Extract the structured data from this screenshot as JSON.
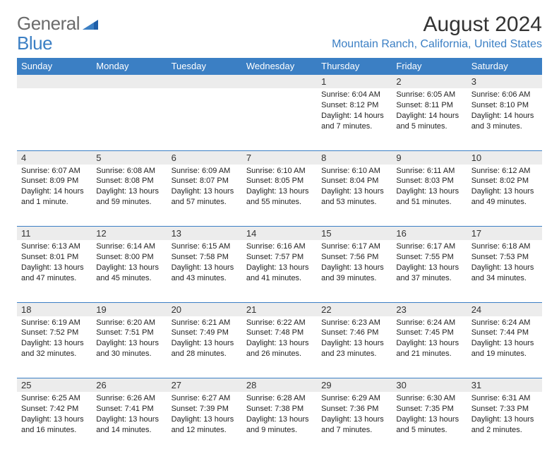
{
  "logo": {
    "word1": "General",
    "word2": "Blue"
  },
  "title": "August 2024",
  "location": "Mountain Ranch, California, United States",
  "colors": {
    "header_bg": "#3b7fc4",
    "header_text": "#ffffff",
    "daynum_bg": "#ececec",
    "border": "#3b7fc4",
    "logo_gray": "#6b6b6b",
    "logo_blue": "#3b7fc4"
  },
  "day_headers": [
    "Sunday",
    "Monday",
    "Tuesday",
    "Wednesday",
    "Thursday",
    "Friday",
    "Saturday"
  ],
  "weeks": [
    [
      null,
      null,
      null,
      null,
      {
        "n": "1",
        "sr": "Sunrise: 6:04 AM",
        "ss": "Sunset: 8:12 PM",
        "d1": "Daylight: 14 hours",
        "d2": "and 7 minutes."
      },
      {
        "n": "2",
        "sr": "Sunrise: 6:05 AM",
        "ss": "Sunset: 8:11 PM",
        "d1": "Daylight: 14 hours",
        "d2": "and 5 minutes."
      },
      {
        "n": "3",
        "sr": "Sunrise: 6:06 AM",
        "ss": "Sunset: 8:10 PM",
        "d1": "Daylight: 14 hours",
        "d2": "and 3 minutes."
      }
    ],
    [
      {
        "n": "4",
        "sr": "Sunrise: 6:07 AM",
        "ss": "Sunset: 8:09 PM",
        "d1": "Daylight: 14 hours",
        "d2": "and 1 minute."
      },
      {
        "n": "5",
        "sr": "Sunrise: 6:08 AM",
        "ss": "Sunset: 8:08 PM",
        "d1": "Daylight: 13 hours",
        "d2": "and 59 minutes."
      },
      {
        "n": "6",
        "sr": "Sunrise: 6:09 AM",
        "ss": "Sunset: 8:07 PM",
        "d1": "Daylight: 13 hours",
        "d2": "and 57 minutes."
      },
      {
        "n": "7",
        "sr": "Sunrise: 6:10 AM",
        "ss": "Sunset: 8:05 PM",
        "d1": "Daylight: 13 hours",
        "d2": "and 55 minutes."
      },
      {
        "n": "8",
        "sr": "Sunrise: 6:10 AM",
        "ss": "Sunset: 8:04 PM",
        "d1": "Daylight: 13 hours",
        "d2": "and 53 minutes."
      },
      {
        "n": "9",
        "sr": "Sunrise: 6:11 AM",
        "ss": "Sunset: 8:03 PM",
        "d1": "Daylight: 13 hours",
        "d2": "and 51 minutes."
      },
      {
        "n": "10",
        "sr": "Sunrise: 6:12 AM",
        "ss": "Sunset: 8:02 PM",
        "d1": "Daylight: 13 hours",
        "d2": "and 49 minutes."
      }
    ],
    [
      {
        "n": "11",
        "sr": "Sunrise: 6:13 AM",
        "ss": "Sunset: 8:01 PM",
        "d1": "Daylight: 13 hours",
        "d2": "and 47 minutes."
      },
      {
        "n": "12",
        "sr": "Sunrise: 6:14 AM",
        "ss": "Sunset: 8:00 PM",
        "d1": "Daylight: 13 hours",
        "d2": "and 45 minutes."
      },
      {
        "n": "13",
        "sr": "Sunrise: 6:15 AM",
        "ss": "Sunset: 7:58 PM",
        "d1": "Daylight: 13 hours",
        "d2": "and 43 minutes."
      },
      {
        "n": "14",
        "sr": "Sunrise: 6:16 AM",
        "ss": "Sunset: 7:57 PM",
        "d1": "Daylight: 13 hours",
        "d2": "and 41 minutes."
      },
      {
        "n": "15",
        "sr": "Sunrise: 6:17 AM",
        "ss": "Sunset: 7:56 PM",
        "d1": "Daylight: 13 hours",
        "d2": "and 39 minutes."
      },
      {
        "n": "16",
        "sr": "Sunrise: 6:17 AM",
        "ss": "Sunset: 7:55 PM",
        "d1": "Daylight: 13 hours",
        "d2": "and 37 minutes."
      },
      {
        "n": "17",
        "sr": "Sunrise: 6:18 AM",
        "ss": "Sunset: 7:53 PM",
        "d1": "Daylight: 13 hours",
        "d2": "and 34 minutes."
      }
    ],
    [
      {
        "n": "18",
        "sr": "Sunrise: 6:19 AM",
        "ss": "Sunset: 7:52 PM",
        "d1": "Daylight: 13 hours",
        "d2": "and 32 minutes."
      },
      {
        "n": "19",
        "sr": "Sunrise: 6:20 AM",
        "ss": "Sunset: 7:51 PM",
        "d1": "Daylight: 13 hours",
        "d2": "and 30 minutes."
      },
      {
        "n": "20",
        "sr": "Sunrise: 6:21 AM",
        "ss": "Sunset: 7:49 PM",
        "d1": "Daylight: 13 hours",
        "d2": "and 28 minutes."
      },
      {
        "n": "21",
        "sr": "Sunrise: 6:22 AM",
        "ss": "Sunset: 7:48 PM",
        "d1": "Daylight: 13 hours",
        "d2": "and 26 minutes."
      },
      {
        "n": "22",
        "sr": "Sunrise: 6:23 AM",
        "ss": "Sunset: 7:46 PM",
        "d1": "Daylight: 13 hours",
        "d2": "and 23 minutes."
      },
      {
        "n": "23",
        "sr": "Sunrise: 6:24 AM",
        "ss": "Sunset: 7:45 PM",
        "d1": "Daylight: 13 hours",
        "d2": "and 21 minutes."
      },
      {
        "n": "24",
        "sr": "Sunrise: 6:24 AM",
        "ss": "Sunset: 7:44 PM",
        "d1": "Daylight: 13 hours",
        "d2": "and 19 minutes."
      }
    ],
    [
      {
        "n": "25",
        "sr": "Sunrise: 6:25 AM",
        "ss": "Sunset: 7:42 PM",
        "d1": "Daylight: 13 hours",
        "d2": "and 16 minutes."
      },
      {
        "n": "26",
        "sr": "Sunrise: 6:26 AM",
        "ss": "Sunset: 7:41 PM",
        "d1": "Daylight: 13 hours",
        "d2": "and 14 minutes."
      },
      {
        "n": "27",
        "sr": "Sunrise: 6:27 AM",
        "ss": "Sunset: 7:39 PM",
        "d1": "Daylight: 13 hours",
        "d2": "and 12 minutes."
      },
      {
        "n": "28",
        "sr": "Sunrise: 6:28 AM",
        "ss": "Sunset: 7:38 PM",
        "d1": "Daylight: 13 hours",
        "d2": "and 9 minutes."
      },
      {
        "n": "29",
        "sr": "Sunrise: 6:29 AM",
        "ss": "Sunset: 7:36 PM",
        "d1": "Daylight: 13 hours",
        "d2": "and 7 minutes."
      },
      {
        "n": "30",
        "sr": "Sunrise: 6:30 AM",
        "ss": "Sunset: 7:35 PM",
        "d1": "Daylight: 13 hours",
        "d2": "and 5 minutes."
      },
      {
        "n": "31",
        "sr": "Sunrise: 6:31 AM",
        "ss": "Sunset: 7:33 PM",
        "d1": "Daylight: 13 hours",
        "d2": "and 2 minutes."
      }
    ]
  ]
}
